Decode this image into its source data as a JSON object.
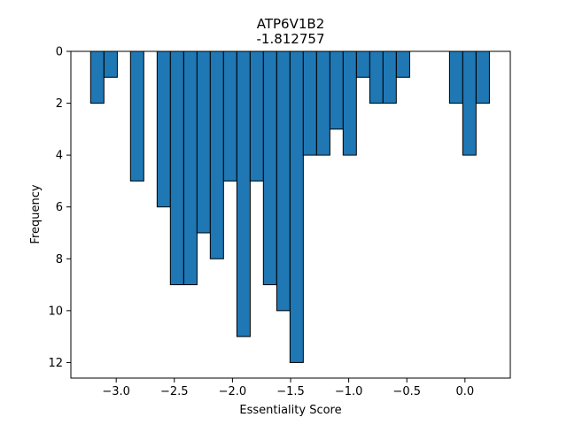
{
  "chart_data": {
    "type": "bar",
    "title": "ATP6V1B2",
    "subtitle": "-1.812757",
    "xlabel": "Essentiality Score",
    "ylabel": "Frequency",
    "xlim": [
      -3.39,
      0.39
    ],
    "ylim": [
      12.6,
      0
    ],
    "y_inverted": true,
    "xticks": [
      -3.0,
      -2.5,
      -2.0,
      -1.5,
      -1.0,
      -0.5,
      0.0
    ],
    "xtick_labels": [
      "−3.0",
      "−2.5",
      "−2.0",
      "−1.5",
      "−1.0",
      "−0.5",
      "0.0"
    ],
    "yticks": [
      0,
      2,
      4,
      6,
      8,
      10,
      12
    ],
    "ytick_labels": [
      "0",
      "2",
      "4",
      "6",
      "8",
      "10",
      "12"
    ],
    "bin_width": 0.1143,
    "bins": [
      {
        "x0": -3.22,
        "count": 2
      },
      {
        "x0": -3.105,
        "count": 1
      },
      {
        "x0": -2.991,
        "count": 0
      },
      {
        "x0": -2.877,
        "count": 5
      },
      {
        "x0": -2.762,
        "count": 0
      },
      {
        "x0": -2.648,
        "count": 6
      },
      {
        "x0": -2.534,
        "count": 9
      },
      {
        "x0": -2.419,
        "count": 9
      },
      {
        "x0": -2.305,
        "count": 7
      },
      {
        "x0": -2.191,
        "count": 8
      },
      {
        "x0": -2.077,
        "count": 5
      },
      {
        "x0": -1.962,
        "count": 11
      },
      {
        "x0": -1.848,
        "count": 5
      },
      {
        "x0": -1.734,
        "count": 9
      },
      {
        "x0": -1.619,
        "count": 10
      },
      {
        "x0": -1.505,
        "count": 12
      },
      {
        "x0": -1.391,
        "count": 4
      },
      {
        "x0": -1.276,
        "count": 4
      },
      {
        "x0": -1.162,
        "count": 3
      },
      {
        "x0": -1.048,
        "count": 4
      },
      {
        "x0": -0.933,
        "count": 1
      },
      {
        "x0": -0.819,
        "count": 2
      },
      {
        "x0": -0.705,
        "count": 2
      },
      {
        "x0": -0.59,
        "count": 1
      },
      {
        "x0": -0.476,
        "count": 0
      },
      {
        "x0": -0.362,
        "count": 0
      },
      {
        "x0": -0.247,
        "count": 0
      },
      {
        "x0": -0.133,
        "count": 2
      },
      {
        "x0": -0.019,
        "count": 4
      },
      {
        "x0": 0.096,
        "count": 2
      }
    ],
    "bar_color": "#1f77b4",
    "edge_color": "#000000",
    "grid": false
  }
}
